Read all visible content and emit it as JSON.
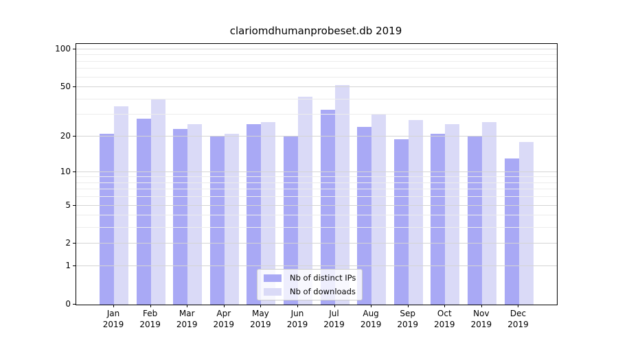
{
  "title": "clariomdhumanprobeset.db 2019",
  "chart_data": {
    "type": "bar",
    "title": "clariomdhumanprobeset.db 2019",
    "categories": [
      "Jan",
      "Feb",
      "Mar",
      "Apr",
      "May",
      "Jun",
      "Jul",
      "Aug",
      "Sep",
      "Oct",
      "Nov",
      "Dec"
    ],
    "xtick_year": "2019",
    "series": [
      {
        "name": "Nb of distinct IPs",
        "color": "#a9a9f5",
        "values": [
          21,
          28,
          23,
          20,
          25,
          20,
          33,
          24,
          19,
          21,
          20,
          13
        ]
      },
      {
        "name": "Nb of downloads",
        "color": "#dadaf7",
        "values": [
          35,
          40,
          25,
          21,
          26,
          42,
          52,
          30,
          27,
          25,
          26,
          18
        ]
      }
    ],
    "yscale": "log1p",
    "ylim": [
      0,
      110
    ],
    "yticks_major": [
      0,
      1,
      2,
      5,
      10,
      20,
      50,
      100
    ],
    "yticks_minor": [
      3,
      4,
      6,
      7,
      8,
      9,
      30,
      40,
      60,
      70,
      80,
      90
    ],
    "grid": true,
    "legend_position": "lower center",
    "colors": {
      "grid_major": "#d4d4d4",
      "grid_minor": "#ececec",
      "axis": "#000000"
    }
  }
}
